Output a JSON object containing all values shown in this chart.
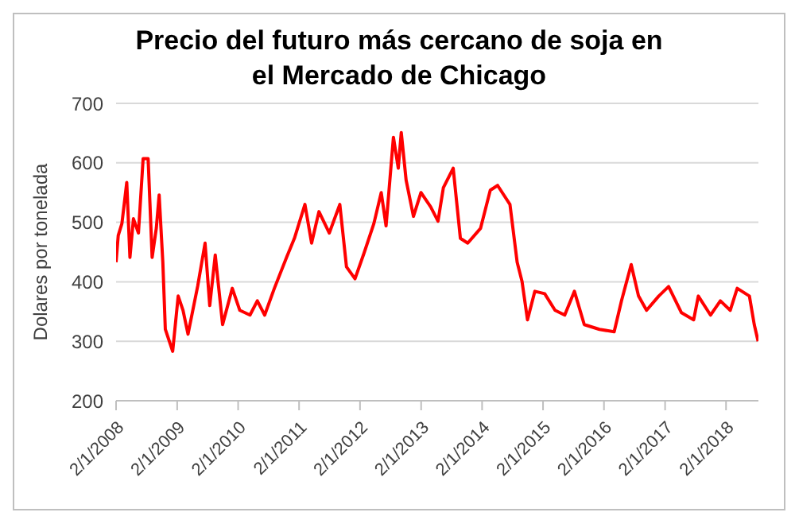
{
  "chart_data": {
    "type": "line",
    "title": "Precio del futuro más cercano de soja en el Mercado de Chicago",
    "ylabel": "Dolares por tonelada",
    "x": [
      "2008-01-02",
      "2008-01-15",
      "2008-02-06",
      "2008-03-06",
      "2008-03-25",
      "2008-04-15",
      "2008-05-15",
      "2008-06-12",
      "2008-07-12",
      "2008-08-05",
      "2008-08-30",
      "2008-09-16",
      "2008-10-08",
      "2008-10-23",
      "2008-12-06",
      "2009-01-08",
      "2009-02-06",
      "2009-03-08",
      "2009-05-05",
      "2009-06-18",
      "2009-07-16",
      "2009-08-18",
      "2009-10-01",
      "2009-11-28",
      "2010-01-12",
      "2010-03-14",
      "2010-04-27",
      "2010-06-10",
      "2010-08-07",
      "2010-10-19",
      "2010-12-05",
      "2011-02-06",
      "2011-03-18",
      "2011-05-01",
      "2011-07-02",
      "2011-09-03",
      "2011-10-13",
      "2011-12-03",
      "2012-01-27",
      "2012-03-25",
      "2012-05-08",
      "2012-06-06",
      "2012-07-20",
      "2012-08-18",
      "2012-09-05",
      "2012-10-04",
      "2012-11-17",
      "2013-01-01",
      "2013-02-28",
      "2013-04-13",
      "2013-05-15",
      "2013-07-13",
      "2013-08-25",
      "2013-10-08",
      "2013-12-24",
      "2014-02-20",
      "2014-04-05",
      "2014-06-18",
      "2014-07-31",
      "2014-08-29",
      "2014-10-01",
      "2014-11-14",
      "2015-01-12",
      "2015-03-15",
      "2015-05-12",
      "2015-07-09",
      "2015-09-06",
      "2015-12-06",
      "2016-03-03",
      "2016-04-16",
      "2016-06-13",
      "2016-07-27",
      "2016-09-13",
      "2016-11-25",
      "2017-01-23",
      "2017-04-10",
      "2017-06-22",
      "2017-07-20",
      "2017-10-01",
      "2017-11-29",
      "2018-01-27",
      "2018-03-10",
      "2018-05-22",
      "2018-06-20",
      "2018-07-13"
    ],
    "series": [
      {
        "color": "#ff0000",
        "values": [
          433,
          478,
          498,
          567,
          441,
          506,
          482,
          607,
          607,
          441,
          490,
          546,
          433,
          320,
          283,
          376,
          352,
          312,
          393,
          465,
          360,
          445,
          328,
          389,
          352,
          344,
          368,
          344,
          389,
          441,
          473,
          530,
          465,
          518,
          482,
          530,
          425,
          405,
          449,
          498,
          550,
          494,
          643,
          591,
          651,
          571,
          510,
          550,
          526,
          502,
          558,
          591,
          473,
          465,
          490,
          554,
          562,
          530,
          433,
          401,
          336,
          384,
          380,
          352,
          344,
          384,
          328,
          320,
          316,
          368,
          429,
          376,
          352,
          376,
          392,
          348,
          336,
          376,
          344,
          368,
          352,
          389,
          376,
          328,
          300
        ]
      }
    ],
    "xlim": [
      "2008-01-02",
      "2018-07-15"
    ],
    "xticks": [
      {
        "value": "2008-01-02",
        "label": "2/1/2008"
      },
      {
        "value": "2009-01-02",
        "label": "2/1/2009"
      },
      {
        "value": "2010-01-02",
        "label": "2/1/2010"
      },
      {
        "value": "2011-01-02",
        "label": "2/1/2011"
      },
      {
        "value": "2012-01-02",
        "label": "2/1/2012"
      },
      {
        "value": "2013-01-02",
        "label": "2/1/2013"
      },
      {
        "value": "2014-01-02",
        "label": "2/1/2014"
      },
      {
        "value": "2015-01-02",
        "label": "2/1/2015"
      },
      {
        "value": "2016-01-02",
        "label": "2/1/2016"
      },
      {
        "value": "2017-01-02",
        "label": "2/1/2017"
      },
      {
        "value": "2018-01-02",
        "label": "2/1/2018"
      }
    ],
    "ylim": [
      200,
      700
    ],
    "yticks": [
      200,
      300,
      400,
      500,
      600,
      700
    ],
    "grid": "y",
    "marker": "none",
    "line_style": "solid"
  }
}
